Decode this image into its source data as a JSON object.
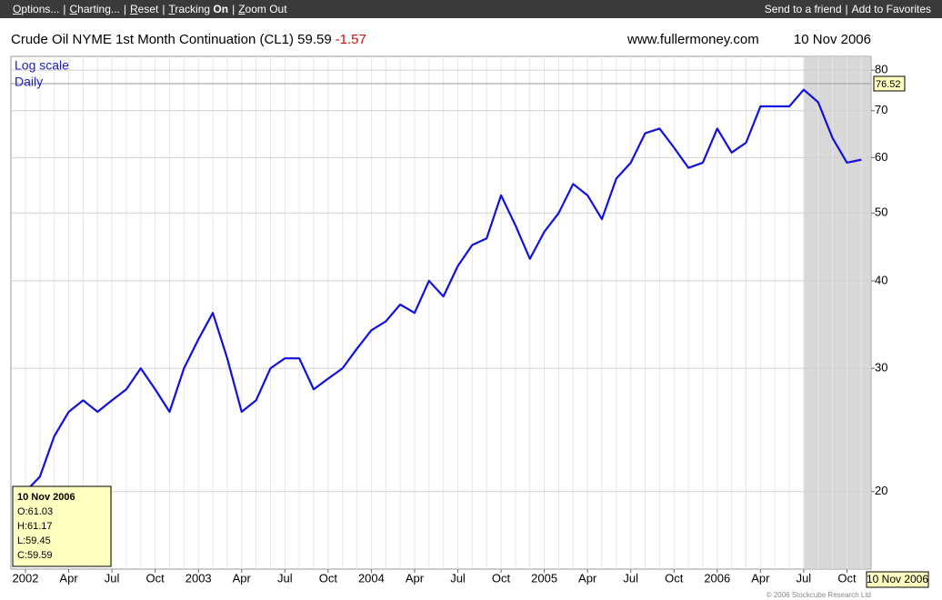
{
  "toolbar": {
    "left": [
      "Options...",
      "Charting...",
      "Reset"
    ],
    "tracking": "Tracking",
    "tracking_state": "On",
    "zoom": "Zoom Out",
    "right": [
      "Send to a friend",
      "Add to Favorites"
    ]
  },
  "chart_data": {
    "type": "line",
    "title": "Crude Oil NYME 1st Month Continuation (CL1) 59.59",
    "change": "-1.57",
    "source": "www.fullermoney.com",
    "date": "10 Nov 2006",
    "scale_label": "Log scale",
    "period_label": "Daily",
    "log_scale": true,
    "grid": true,
    "x": [
      "2002-01",
      "2002-02",
      "2002-03",
      "2002-04",
      "2002-05",
      "2002-06",
      "2002-07",
      "2002-08",
      "2002-09",
      "2002-10",
      "2002-11",
      "2002-12",
      "2003-01",
      "2003-02",
      "2003-03",
      "2003-04",
      "2003-05",
      "2003-06",
      "2003-07",
      "2003-08",
      "2003-09",
      "2003-10",
      "2003-11",
      "2003-12",
      "2004-01",
      "2004-02",
      "2004-03",
      "2004-04",
      "2004-05",
      "2004-06",
      "2004-07",
      "2004-08",
      "2004-09",
      "2004-10",
      "2004-11",
      "2004-12",
      "2005-01",
      "2005-02",
      "2005-03",
      "2005-04",
      "2005-05",
      "2005-06",
      "2005-07",
      "2005-08",
      "2005-09",
      "2005-10",
      "2005-11",
      "2005-12",
      "2006-01",
      "2006-02",
      "2006-03",
      "2006-04",
      "2006-05",
      "2006-06",
      "2006-07",
      "2006-08",
      "2006-09",
      "2006-10",
      "2006-11"
    ],
    "series": [
      {
        "name": "CL1",
        "color": "#1010e0",
        "values": [
          20,
          21,
          24,
          26,
          27,
          26,
          27,
          28,
          30,
          28,
          26,
          30,
          33,
          36,
          31,
          26,
          27,
          30,
          31,
          31,
          28,
          29,
          30,
          32,
          34,
          35,
          37,
          36,
          40,
          38,
          42,
          45,
          46,
          53,
          48,
          43,
          47,
          50,
          55,
          53,
          49,
          56,
          59,
          65,
          66,
          62,
          58,
          59,
          66,
          61,
          63,
          71,
          71,
          71,
          75,
          72,
          64,
          59,
          59.59
        ]
      }
    ],
    "ylim": [
      15.5,
      83.7
    ],
    "yticks": [
      20,
      30,
      40,
      50,
      60,
      70,
      80
    ],
    "xticks": [
      {
        "value": "2002-01",
        "label": "2002"
      },
      {
        "value": "2002-04",
        "label": "Apr"
      },
      {
        "value": "2002-07",
        "label": "Jul"
      },
      {
        "value": "2002-10",
        "label": "Oct"
      },
      {
        "value": "2003-01",
        "label": "2003"
      },
      {
        "value": "2003-04",
        "label": "Apr"
      },
      {
        "value": "2003-07",
        "label": "Jul"
      },
      {
        "value": "2003-10",
        "label": "Oct"
      },
      {
        "value": "2004-01",
        "label": "2004"
      },
      {
        "value": "2004-04",
        "label": "Apr"
      },
      {
        "value": "2004-07",
        "label": "Jul"
      },
      {
        "value": "2004-10",
        "label": "Oct"
      },
      {
        "value": "2005-01",
        "label": "2005"
      },
      {
        "value": "2005-04",
        "label": "Apr"
      },
      {
        "value": "2005-07",
        "label": "Jul"
      },
      {
        "value": "2005-10",
        "label": "Oct"
      },
      {
        "value": "2006-01",
        "label": "2006"
      },
      {
        "value": "2006-04",
        "label": "Apr"
      },
      {
        "value": "2006-07",
        "label": "Jul"
      },
      {
        "value": "2006-10",
        "label": "Oct"
      }
    ],
    "shaded_from": "2006-07",
    "reference_line": 76.52,
    "info_box": {
      "date": "10 Nov 2006",
      "lines": [
        "O:61.03",
        "H:61.17",
        "L:59.45",
        "C:59.59"
      ]
    },
    "end_date": "10 Nov 2006",
    "copyright": "© 2006 Stockcube Research Ltd"
  }
}
